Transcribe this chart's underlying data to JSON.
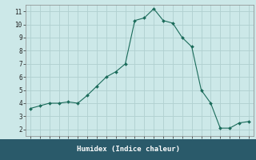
{
  "x": [
    0,
    1,
    2,
    3,
    4,
    5,
    6,
    7,
    8,
    9,
    10,
    11,
    12,
    13,
    14,
    15,
    16,
    17,
    18,
    19,
    20,
    21,
    22,
    23
  ],
  "y": [
    3.6,
    3.8,
    4.0,
    4.0,
    4.1,
    4.0,
    4.6,
    5.3,
    6.0,
    6.4,
    7.0,
    10.3,
    10.5,
    11.2,
    10.3,
    10.1,
    9.0,
    8.3,
    5.0,
    4.0,
    2.1,
    2.1,
    2.5,
    2.6
  ],
  "line_color": "#1a6b5a",
  "marker": "D",
  "marker_size": 2.0,
  "bg_color": "#cce8e8",
  "grid_color": "#b0d0d0",
  "xlabel": "Humidex (Indice chaleur)",
  "xlim": [
    -0.5,
    23.5
  ],
  "ylim": [
    1.5,
    11.5
  ],
  "xticks": [
    0,
    1,
    2,
    3,
    4,
    5,
    6,
    7,
    8,
    9,
    10,
    11,
    12,
    13,
    14,
    15,
    16,
    17,
    18,
    19,
    20,
    21,
    22,
    23
  ],
  "yticks": [
    2,
    3,
    4,
    5,
    6,
    7,
    8,
    9,
    10,
    11
  ],
  "tick_fontsize": 5.5,
  "label_fontsize": 6.5,
  "bottom_bar_color": "#2a5a6a",
  "spine_color": "#888888"
}
